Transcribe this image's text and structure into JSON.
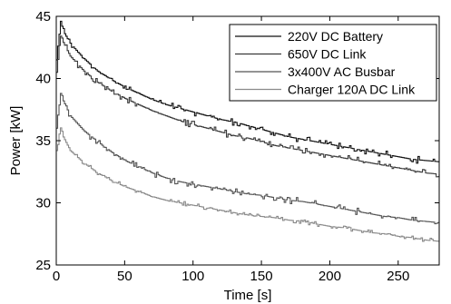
{
  "chart_data": {
    "type": "line",
    "title": "",
    "xlabel": "Time [s]",
    "ylabel": "Power [kW]",
    "xlim": [
      0,
      280
    ],
    "ylim": [
      25,
      45
    ],
    "xticks": [
      0,
      50,
      100,
      150,
      200,
      250
    ],
    "yticks": [
      25,
      30,
      35,
      40,
      45
    ],
    "grid": false,
    "legend_position": "top-right",
    "series": [
      {
        "name": "220V DC Battery",
        "color": "#111111",
        "x": [
          0,
          3,
          5,
          10,
          20,
          30,
          40,
          50,
          60,
          70,
          80,
          90,
          100,
          110,
          120,
          130,
          140,
          150,
          160,
          170,
          180,
          190,
          200,
          210,
          220,
          230,
          240,
          250,
          260,
          270,
          280
        ],
        "values": [
          41.5,
          44.6,
          43.8,
          42.8,
          41.6,
          40.6,
          39.9,
          39.3,
          38.8,
          38.3,
          37.9,
          37.6,
          37.3,
          37.0,
          36.7,
          36.5,
          36.2,
          35.9,
          35.6,
          35.3,
          35.1,
          34.9,
          34.7,
          34.5,
          34.3,
          34.1,
          33.9,
          33.7,
          33.5,
          33.4,
          33.3
        ]
      },
      {
        "name": "650V DC Link",
        "color": "#3a3a3a",
        "x": [
          0,
          3,
          5,
          10,
          20,
          30,
          40,
          50,
          60,
          70,
          80,
          90,
          100,
          110,
          120,
          130,
          140,
          150,
          160,
          170,
          180,
          190,
          200,
          210,
          220,
          230,
          240,
          250,
          260,
          270,
          280
        ],
        "values": [
          40.5,
          43.6,
          42.9,
          41.8,
          40.6,
          39.7,
          39.0,
          38.4,
          37.9,
          37.4,
          37.0,
          36.6,
          36.3,
          36.0,
          35.7,
          35.4,
          35.2,
          34.9,
          34.6,
          34.4,
          34.2,
          34.0,
          33.8,
          33.6,
          33.4,
          33.2,
          33.0,
          32.8,
          32.6,
          32.4,
          32.3
        ]
      },
      {
        "name": "3x400V AC Busbar",
        "color": "#555555",
        "x": [
          0,
          3,
          5,
          10,
          20,
          30,
          40,
          50,
          60,
          70,
          80,
          90,
          100,
          110,
          120,
          130,
          140,
          150,
          160,
          170,
          180,
          190,
          200,
          210,
          220,
          230,
          240,
          250,
          260,
          270,
          280
        ],
        "values": [
          36.0,
          38.8,
          38.2,
          37.0,
          35.8,
          34.9,
          34.1,
          33.4,
          32.9,
          32.4,
          32.0,
          31.7,
          31.5,
          31.3,
          31.1,
          30.9,
          30.7,
          30.6,
          30.4,
          30.2,
          30.1,
          29.9,
          29.7,
          29.5,
          29.3,
          29.1,
          28.9,
          28.8,
          28.6,
          28.5,
          28.4
        ]
      },
      {
        "name": "Charger 120A DC Link",
        "color": "#8a8a8a",
        "x": [
          0,
          3,
          5,
          10,
          20,
          30,
          40,
          50,
          60,
          70,
          80,
          90,
          100,
          110,
          120,
          130,
          140,
          150,
          160,
          170,
          180,
          190,
          200,
          210,
          220,
          230,
          240,
          250,
          260,
          270,
          280
        ],
        "values": [
          34.2,
          36.2,
          35.3,
          34.2,
          33.2,
          32.4,
          31.8,
          31.3,
          30.9,
          30.5,
          30.2,
          30.0,
          29.8,
          29.6,
          29.4,
          29.2,
          29.0,
          28.9,
          28.8,
          28.6,
          28.5,
          28.3,
          28.1,
          28.0,
          27.8,
          27.6,
          27.5,
          27.3,
          27.2,
          27.0,
          26.9
        ]
      }
    ]
  }
}
